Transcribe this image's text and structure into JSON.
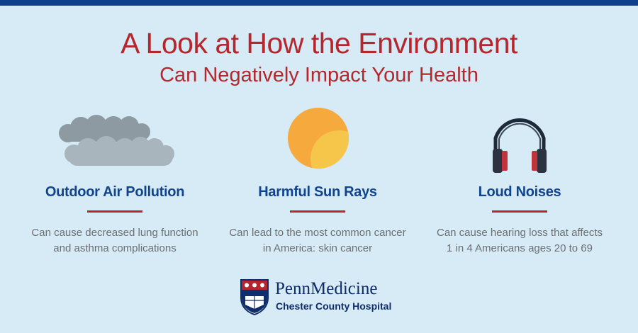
{
  "header": {
    "title_line1": "A Look at How the Environment",
    "title_line2": "Can Negatively Impact Your Health"
  },
  "columns": [
    {
      "icon": "smog-cloud-icon",
      "heading": "Outdoor Air Pollution",
      "description_line1": "Can cause decreased lung function",
      "description_line2": "and asthma complications"
    },
    {
      "icon": "sun-icon",
      "heading": "Harmful Sun Rays",
      "description_line1": "Can lead to the most common cancer",
      "description_line2": "in America: skin cancer"
    },
    {
      "icon": "headphones-icon",
      "heading": "Loud Noises",
      "description_line1": "Can cause hearing loss that affects",
      "description_line2": "1 in 4 Americans ages 20 to 69"
    }
  ],
  "logo": {
    "name": "PennMedicine",
    "subtitle": "Chester County Hospital"
  },
  "colors": {
    "background": "#d6ebf5",
    "top_bar": "#0f3f8c",
    "title_red": "#b5272d",
    "heading_blue": "#11448f",
    "body_gray": "#6b6f73"
  }
}
